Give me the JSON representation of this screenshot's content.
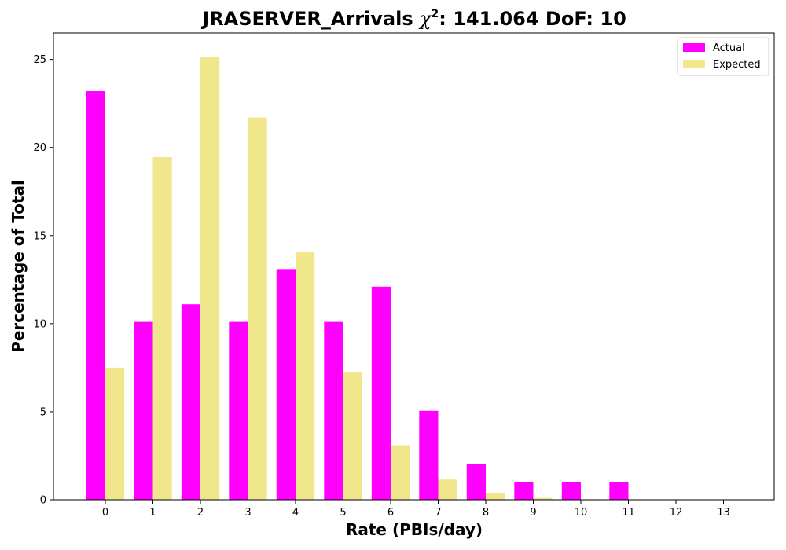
{
  "chart_data": {
    "type": "bar",
    "title_prefix": "JRASERVER_Arrivals ",
    "title_chi": "χ",
    "title_sup": "2",
    "title_suffix": ": 141.064 DoF: 10",
    "xlabel": "Rate (PBIs/day)",
    "ylabel": "Percentage of Total",
    "categories": [
      "0",
      "1",
      "2",
      "3",
      "4",
      "5",
      "6",
      "7",
      "8",
      "9",
      "10",
      "11",
      "12",
      "13"
    ],
    "series": [
      {
        "name": "Actual",
        "color": "#ff00ff",
        "values": [
          23.2,
          10.1,
          11.1,
          10.1,
          13.1,
          10.1,
          12.1,
          5.05,
          2.02,
          1.01,
          1.01,
          1.01,
          0,
          0
        ]
      },
      {
        "name": "Expected",
        "color": "#f0e68c",
        "values": [
          7.5,
          19.45,
          25.15,
          21.7,
          14.05,
          7.25,
          3.1,
          1.15,
          0.38,
          0.1,
          0.03,
          0.01,
          0,
          0
        ]
      }
    ],
    "ylim": [
      0,
      26.5
    ],
    "yticks": [
      "0",
      "5",
      "10",
      "15",
      "20",
      "25"
    ],
    "legend_position": "top-right",
    "grid": false
  }
}
